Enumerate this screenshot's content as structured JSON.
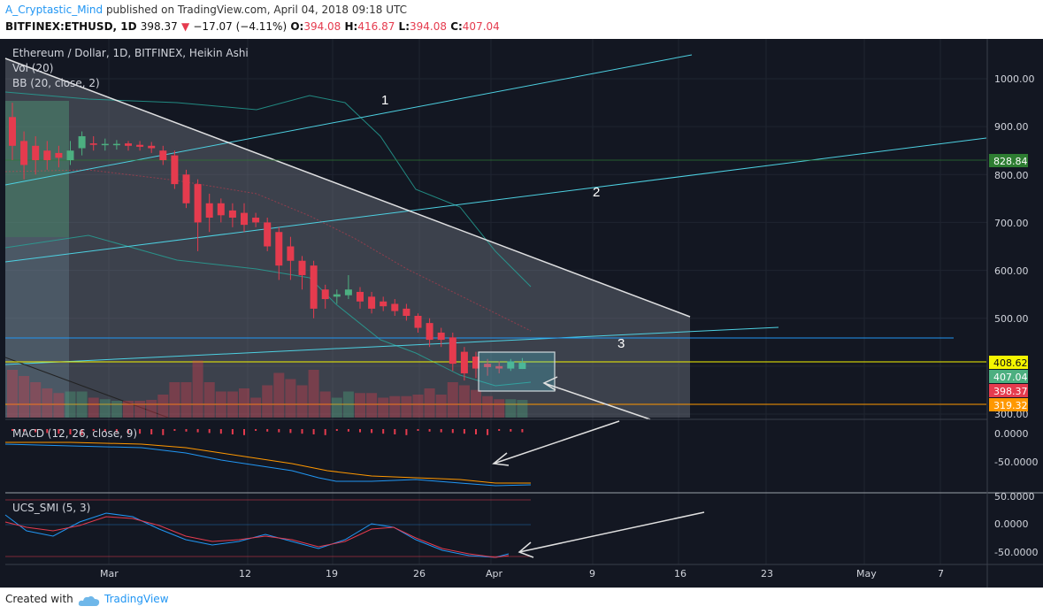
{
  "header": {
    "author": "A_Cryptastic_Mind",
    "published": "published on TradingView.com, April 04, 2018 09:18 UTC",
    "symbol": "BITFINEX:ETHUSD, 1D",
    "last": "398.37",
    "change": "−17.07 (−4.11%)",
    "o_label": "O:",
    "o_val": "394.08",
    "h_label": "H:",
    "h_val": "416.87",
    "l_label": "L:",
    "l_val": "394.08",
    "c_label": "C:",
    "c_val": "407.04"
  },
  "legends": {
    "main": "Ethereum / Dollar, 1D, BITFINEX, Heikin Ashi",
    "vol": "Vol (20)",
    "bb": "BB (20, close, 2)",
    "macd": "MACD (12, 26, close, 9)",
    "smi": "UCS_SMI (5, 3)"
  },
  "annotations": [
    "1",
    "2",
    "3"
  ],
  "price_axis": [
    "1000.00",
    "900.00",
    "800.00",
    "700.00",
    "600.00",
    "500.00",
    "300.00"
  ],
  "price_badges": [
    {
      "label": "828.84",
      "color": "#2e7d32"
    },
    {
      "label": "408.62",
      "color": "#f5f500"
    },
    {
      "label": "407.04",
      "color": "#4caf80"
    },
    {
      "label": "398.37",
      "color": "#e53b4e"
    },
    {
      "label": "319.32",
      "color": "#ff9800"
    }
  ],
  "macd_axis": [
    "0.0000",
    "-50.0000"
  ],
  "smi_axis": [
    "50.0000",
    "0.0000",
    "-50.0000"
  ],
  "x_axis": [
    "Mar",
    "12",
    "19",
    "26",
    "Apr",
    "9",
    "16",
    "23",
    "May",
    "7"
  ],
  "footer": {
    "created": "Created with",
    "brand": "TradingView"
  },
  "colors": {
    "background": "#131722",
    "bull": "#4caf80",
    "bear": "#e53b4e",
    "accent": "#2196f3"
  },
  "chart_data": {
    "type": "candlestick",
    "title": "Ethereum / Dollar, 1D, BITFINEX, Heikin Ashi",
    "ylim": [
      300,
      1060
    ],
    "candles": [
      {
        "o": 920,
        "h": 950,
        "l": 830,
        "c": 860
      },
      {
        "o": 870,
        "h": 890,
        "l": 790,
        "c": 820
      },
      {
        "o": 860,
        "h": 880,
        "l": 800,
        "c": 830
      },
      {
        "o": 850,
        "h": 870,
        "l": 810,
        "c": 830
      },
      {
        "o": 845,
        "h": 860,
        "l": 815,
        "c": 835
      },
      {
        "o": 830,
        "h": 870,
        "l": 820,
        "c": 850
      },
      {
        "o": 855,
        "h": 890,
        "l": 840,
        "c": 880
      },
      {
        "o": 865,
        "h": 880,
        "l": 850,
        "c": 862
      },
      {
        "o": 862,
        "h": 875,
        "l": 850,
        "c": 864
      },
      {
        "o": 862,
        "h": 872,
        "l": 852,
        "c": 864
      },
      {
        "o": 865,
        "h": 870,
        "l": 850,
        "c": 860
      },
      {
        "o": 862,
        "h": 870,
        "l": 850,
        "c": 858
      },
      {
        "o": 860,
        "h": 868,
        "l": 845,
        "c": 855
      },
      {
        "o": 850,
        "h": 860,
        "l": 820,
        "c": 830
      },
      {
        "o": 840,
        "h": 850,
        "l": 770,
        "c": 780
      },
      {
        "o": 800,
        "h": 810,
        "l": 730,
        "c": 740
      },
      {
        "o": 780,
        "h": 790,
        "l": 640,
        "c": 700
      },
      {
        "o": 740,
        "h": 760,
        "l": 680,
        "c": 710
      },
      {
        "o": 740,
        "h": 750,
        "l": 700,
        "c": 715
      },
      {
        "o": 725,
        "h": 740,
        "l": 690,
        "c": 710
      },
      {
        "o": 720,
        "h": 740,
        "l": 680,
        "c": 695
      },
      {
        "o": 710,
        "h": 720,
        "l": 690,
        "c": 700
      },
      {
        "o": 700,
        "h": 710,
        "l": 640,
        "c": 650
      },
      {
        "o": 680,
        "h": 690,
        "l": 580,
        "c": 610
      },
      {
        "o": 650,
        "h": 670,
        "l": 580,
        "c": 620
      },
      {
        "o": 620,
        "h": 630,
        "l": 560,
        "c": 590
      },
      {
        "o": 610,
        "h": 620,
        "l": 500,
        "c": 520
      },
      {
        "o": 560,
        "h": 570,
        "l": 520,
        "c": 540
      },
      {
        "o": 545,
        "h": 560,
        "l": 530,
        "c": 550
      },
      {
        "o": 548,
        "h": 590,
        "l": 540,
        "c": 560
      },
      {
        "o": 555,
        "h": 565,
        "l": 520,
        "c": 535
      },
      {
        "o": 545,
        "h": 555,
        "l": 510,
        "c": 520
      },
      {
        "o": 535,
        "h": 545,
        "l": 515,
        "c": 525
      },
      {
        "o": 530,
        "h": 540,
        "l": 505,
        "c": 515
      },
      {
        "o": 520,
        "h": 530,
        "l": 495,
        "c": 505
      },
      {
        "o": 505,
        "h": 510,
        "l": 470,
        "c": 480
      },
      {
        "o": 490,
        "h": 500,
        "l": 440,
        "c": 455
      },
      {
        "o": 470,
        "h": 480,
        "l": 440,
        "c": 455
      },
      {
        "o": 460,
        "h": 470,
        "l": 390,
        "c": 405
      },
      {
        "o": 430,
        "h": 440,
        "l": 370,
        "c": 385
      },
      {
        "o": 420,
        "h": 430,
        "l": 375,
        "c": 395
      },
      {
        "o": 405,
        "h": 415,
        "l": 380,
        "c": 398
      },
      {
        "o": 400,
        "h": 410,
        "l": 385,
        "c": 395
      },
      {
        "o": 395,
        "h": 415,
        "l": 390,
        "c": 410
      },
      {
        "o": 394.08,
        "h": 416.87,
        "l": 394.08,
        "c": 407.04
      }
    ]
  }
}
